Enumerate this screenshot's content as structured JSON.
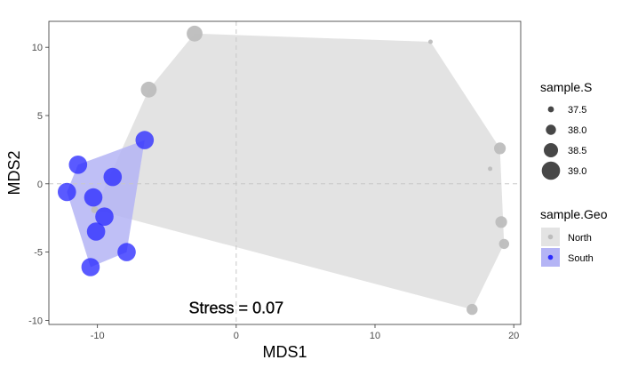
{
  "chart_data": {
    "type": "scatter",
    "xlabel": "MDS1",
    "ylabel": "MDS2",
    "xlim": [
      -13.5,
      20.5
    ],
    "ylim": [
      -10.3,
      11.9
    ],
    "x_ticks": [
      -10,
      0,
      10,
      20
    ],
    "y_ticks": [
      -10,
      -5,
      0,
      5,
      10
    ],
    "reference_lines": {
      "x": 0,
      "y": 0
    },
    "grid": false,
    "annotation": {
      "text": "Stress = 0.07",
      "x": 0.0,
      "y": -9.1
    },
    "size_legend": {
      "title": "sample.S",
      "placement": "right",
      "entries": [
        {
          "label": "37.5",
          "value": 37.5
        },
        {
          "label": "38.0",
          "value": 38.0
        },
        {
          "label": "38.5",
          "value": 38.5
        },
        {
          "label": "39.0",
          "value": 39.0
        }
      ]
    },
    "group_legend": {
      "title": "sample.Geo",
      "placement": "right",
      "entries": [
        {
          "label": "North",
          "color": "#bdbdbd",
          "fill": "#e3e3e3"
        },
        {
          "label": "South",
          "color": "#2b2bff",
          "fill": "#b4b4f5"
        }
      ]
    },
    "series": [
      {
        "group": "North",
        "points": [
          {
            "x": -3.0,
            "y": 11.0,
            "s": 38.7
          },
          {
            "x": 14.0,
            "y": 10.4,
            "s": 37.3
          },
          {
            "x": -6.3,
            "y": 6.9,
            "s": 38.7
          },
          {
            "x": 19.0,
            "y": 2.6,
            "s": 38.2
          },
          {
            "x": 18.3,
            "y": 1.1,
            "s": 37.3
          },
          {
            "x": 19.1,
            "y": -2.8,
            "s": 38.2
          },
          {
            "x": 19.3,
            "y": -4.4,
            "s": 38.0
          },
          {
            "x": 17.0,
            "y": -9.2,
            "s": 38.1
          },
          {
            "x": -10.2,
            "y": -1.9,
            "s": 37.6
          }
        ]
      },
      {
        "group": "South",
        "points": [
          {
            "x": -6.6,
            "y": 3.2,
            "s": 39.0
          },
          {
            "x": -11.4,
            "y": 1.4,
            "s": 39.0
          },
          {
            "x": -8.9,
            "y": 0.5,
            "s": 39.0
          },
          {
            "x": -12.2,
            "y": -0.6,
            "s": 39.0
          },
          {
            "x": -10.3,
            "y": -1.0,
            "s": 39.0
          },
          {
            "x": -9.5,
            "y": -2.4,
            "s": 39.0
          },
          {
            "x": -10.1,
            "y": -3.5,
            "s": 39.0
          },
          {
            "x": -7.9,
            "y": -5.0,
            "s": 39.0
          },
          {
            "x": -10.5,
            "y": -6.1,
            "s": 39.0
          }
        ]
      }
    ]
  }
}
